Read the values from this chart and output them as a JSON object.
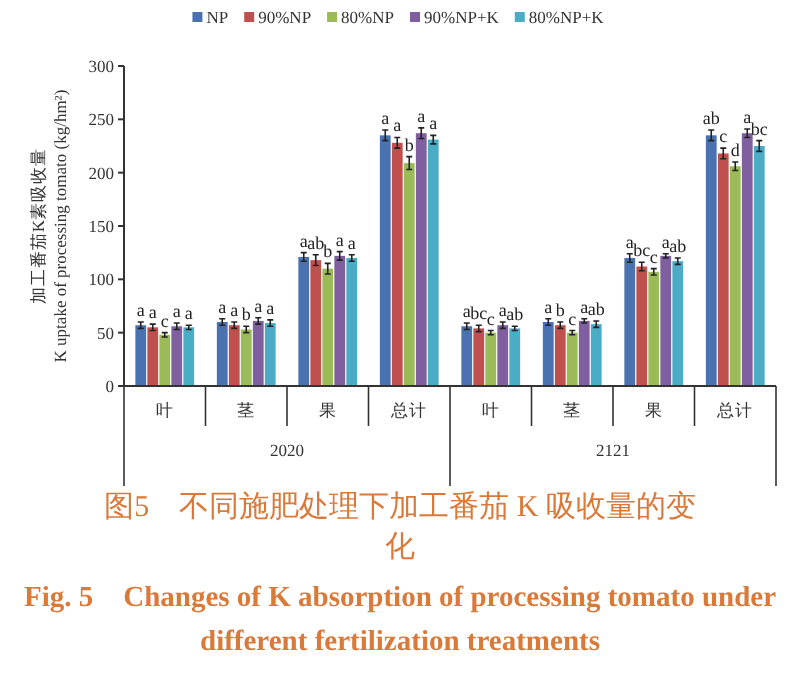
{
  "chart_data": {
    "type": "bar",
    "title": "图5　不同施肥处理下加工番茄 K 吸收量的变化",
    "subtitle": "Fig. 5　Changes of K absorption of processing tomato under different fertilization treatments",
    "ylabel": "加工番茄K素吸收量\nK uptake of processing tomato (kg/hm²)",
    "categories": [
      "叶",
      "茎",
      "果",
      "总计",
      "叶",
      "茎",
      "果",
      "总计"
    ],
    "annotations": [
      "2020",
      "2121"
    ],
    "ylim": [
      0,
      300
    ],
    "yticks": [
      0,
      50,
      100,
      150,
      200,
      250,
      300
    ],
    "grid": false,
    "legend": "top",
    "series": [
      {
        "name": "NP",
        "color": "#4a72b0",
        "values": [
          57,
          60,
          121,
          235,
          56,
          60,
          120,
          235
        ],
        "errors": [
          3,
          3,
          4,
          5,
          3,
          3,
          4,
          5
        ],
        "value_labels": [
          "a",
          "a",
          "a",
          "a",
          "a",
          "a",
          "a",
          "ab"
        ]
      },
      {
        "name": "90%NP",
        "color": "#c0504d",
        "values": [
          55,
          57,
          118,
          228,
          54,
          57,
          112,
          218
        ],
        "errors": [
          3,
          3,
          5,
          5,
          3,
          3,
          4,
          5
        ],
        "value_labels": [
          "a",
          "a",
          "ab",
          "a",
          "bc",
          "b",
          "bc",
          "c"
        ]
      },
      {
        "name": "80%NP",
        "color": "#9bbb59",
        "values": [
          48,
          53,
          110,
          209,
          50,
          50,
          107,
          206
        ],
        "errors": [
          2,
          3,
          5,
          6,
          2,
          2,
          3,
          4
        ],
        "value_labels": [
          "c",
          "b",
          "b",
          "b",
          "c",
          "c",
          "c",
          "d"
        ]
      },
      {
        "name": "90%NP+K",
        "color": "#7f5f9f",
        "values": [
          56,
          61,
          122,
          237,
          57,
          61,
          122,
          237
        ],
        "errors": [
          3,
          3,
          4,
          5,
          3,
          2,
          2,
          4
        ],
        "value_labels": [
          "a",
          "a",
          "a",
          "a",
          "a",
          "a",
          "a",
          "a"
        ]
      },
      {
        "name": "80%NP+K",
        "color": "#4bacc6",
        "values": [
          55,
          59,
          120,
          231,
          54,
          58,
          117,
          225
        ],
        "errors": [
          2,
          3,
          3,
          4,
          2,
          3,
          3,
          5
        ],
        "value_labels": [
          "a",
          "a",
          "a",
          "a",
          "ab",
          "ab",
          "ab",
          "bc"
        ]
      }
    ]
  }
}
